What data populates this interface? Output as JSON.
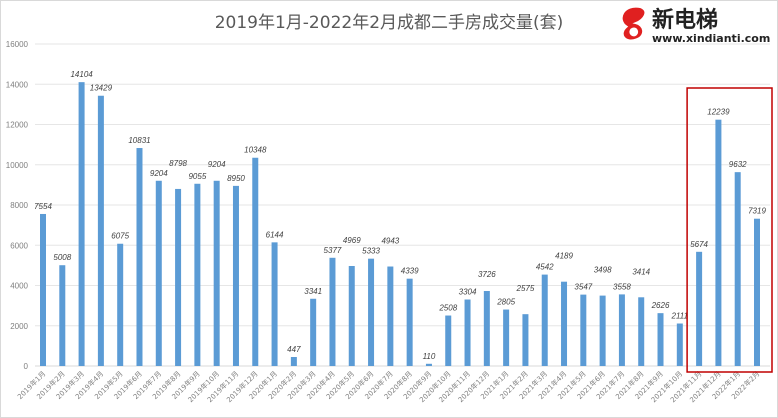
{
  "chart_data": {
    "type": "bar",
    "title": "2019年1月-2022年2月成都二手房成交量(套)",
    "categories": [
      "2019年1月",
      "2019年2月",
      "2019年3月",
      "2019年4月",
      "2019年5月",
      "2019年6月",
      "2019年7月",
      "2019年8月",
      "2019年9月",
      "2019年10月",
      "2019年11月",
      "2019年12月",
      "2020年1月",
      "2020年2月",
      "2020年3月",
      "2020年4月",
      "2020年5月",
      "2020年6月",
      "2020年7月",
      "2020年8月",
      "2020年9月",
      "2020年10月",
      "2020年11月",
      "2020年12月",
      "2021年1月",
      "2021年2月",
      "2021年3月",
      "2021年4月",
      "2021年5月",
      "2021年6月",
      "2021年7月",
      "2021年8月",
      "2021年9月",
      "2021年10月",
      "2021年11月",
      "2021年12月",
      "2022年1月",
      "2022年2月"
    ],
    "values": [
      7554,
      5008,
      14104,
      13429,
      6075,
      10831,
      9204,
      8798,
      9055,
      9204,
      8950,
      10348,
      6144,
      447,
      3341,
      5377,
      4969,
      5333,
      4943,
      4339,
      110,
      2508,
      3304,
      3726,
      2805,
      2575,
      4542,
      4189,
      3547,
      3498,
      3558,
      3414,
      2626,
      2111,
      5674,
      12239,
      9632,
      7319
    ],
    "ylim": [
      0,
      16000
    ],
    "yticks": [
      0,
      2000,
      4000,
      6000,
      8000,
      10000,
      12000,
      14000,
      16000
    ],
    "grid": true,
    "bar_color": "#5b9bd5",
    "highlight_color": "#c00000",
    "highlight_categories": [
      "2021年11月",
      "2021年12月",
      "2022年1月",
      "2022年2月"
    ]
  },
  "watermark": {
    "brand": "新电梯",
    "url": "www.xindianti.com"
  }
}
